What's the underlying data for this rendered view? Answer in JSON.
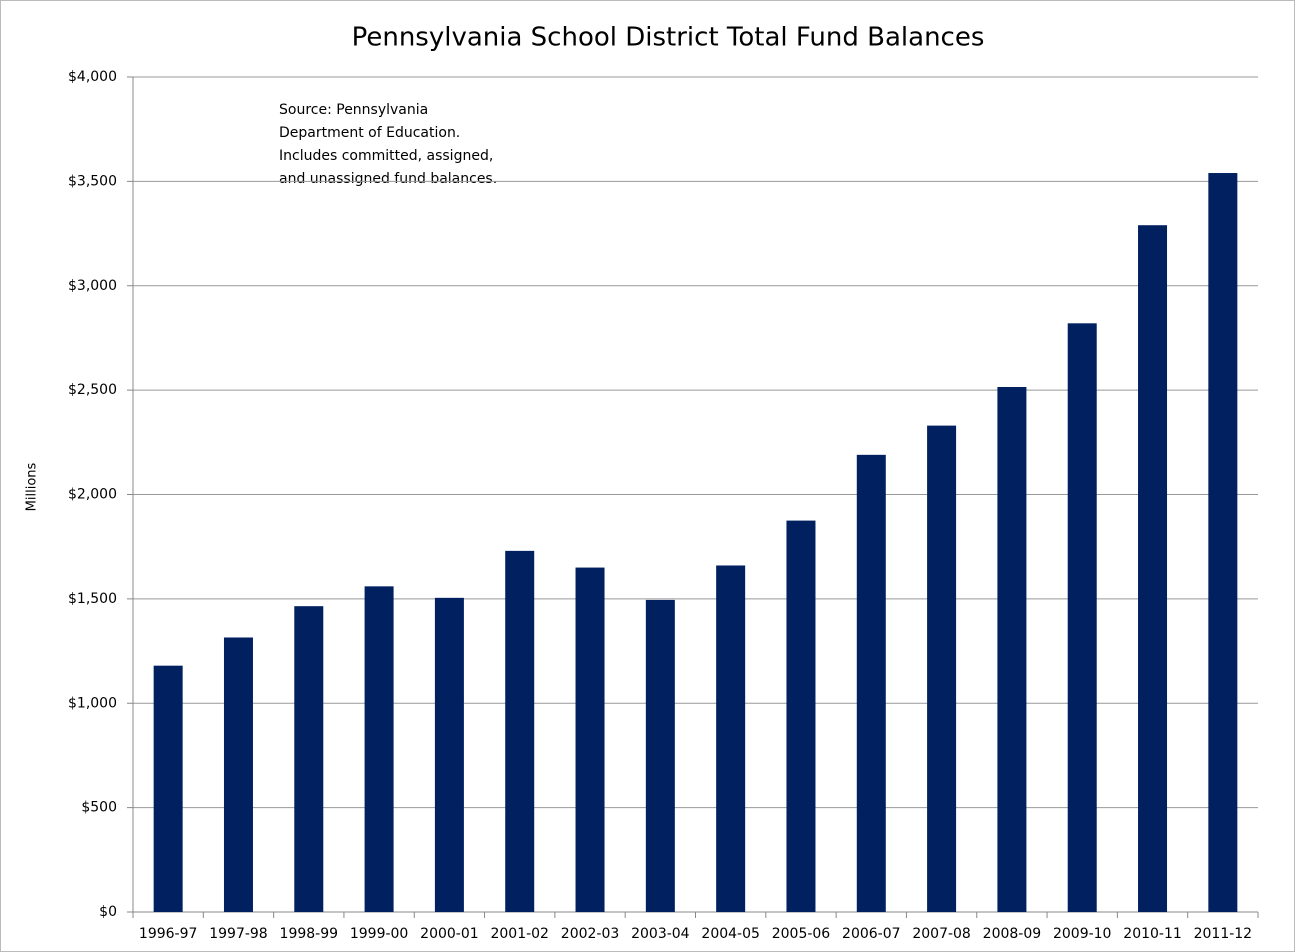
{
  "chart_data": {
    "type": "bar",
    "title": "Pennsylvania School District Total Fund Balances",
    "y_label": "Millions",
    "annotation": [
      "Source: Pennsylvania",
      "Department of Education.",
      "Includes committed, assigned,",
      "and unassigned  fund balances."
    ],
    "categories": [
      "1996-97",
      "1997-98",
      "1998-99",
      "1999-00",
      "2000-01",
      "2001-02",
      "2002-03",
      "2003-04",
      "2004-05",
      "2005-06",
      "2006-07",
      "2007-08",
      "2008-09",
      "2009-10",
      "2010-11",
      "2011-12"
    ],
    "values": [
      1180,
      1315,
      1465,
      1560,
      1505,
      1730,
      1650,
      1495,
      1660,
      1875,
      2190,
      2330,
      2515,
      2820,
      3290,
      3540
    ],
    "color": "#002060",
    "ylim": [
      0,
      4000
    ],
    "yticks": [
      {
        "value": 0,
        "label": "$0"
      },
      {
        "value": 500,
        "label": "$500"
      },
      {
        "value": 1000,
        "label": "$1,000"
      },
      {
        "value": 1500,
        "label": "$1,500"
      },
      {
        "value": 2000,
        "label": "$2,000"
      },
      {
        "value": 2500,
        "label": "$2,500"
      },
      {
        "value": 3000,
        "label": "$3,000"
      },
      {
        "value": 3500,
        "label": "$3,500"
      },
      {
        "value": 4000,
        "label": "$4,000"
      }
    ],
    "grid": true
  }
}
